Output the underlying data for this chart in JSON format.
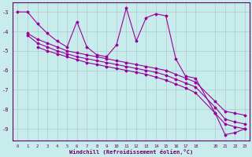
{
  "xlabel": "Windchill (Refroidissement éolien,°C)",
  "bg_color": "#c8ecec",
  "line_color": "#990099",
  "grid_color": "#aacccc",
  "axis_color": "#660066",
  "xlim": [
    -0.5,
    23.5
  ],
  "ylim": [
    -9.6,
    -2.5
  ],
  "yticks": [
    -3,
    -4,
    -5,
    -6,
    -7,
    -8,
    -9
  ],
  "xticks": [
    0,
    1,
    2,
    3,
    4,
    5,
    6,
    7,
    8,
    9,
    10,
    11,
    12,
    13,
    14,
    15,
    16,
    17,
    18,
    20,
    21,
    22,
    23
  ],
  "series1_x": [
    0,
    1,
    2,
    3,
    4,
    5,
    6,
    7,
    8,
    9,
    10,
    11,
    12,
    13,
    14,
    15,
    16,
    17,
    18,
    20,
    21,
    22,
    23
  ],
  "series1_y": [
    -3.0,
    -3.0,
    -3.6,
    -4.1,
    -4.5,
    -4.8,
    -3.5,
    -4.8,
    -5.2,
    -5.3,
    -4.7,
    -2.8,
    -4.5,
    -3.3,
    -3.1,
    -3.2,
    -5.4,
    -6.3,
    -6.4,
    -8.2,
    -9.3,
    -9.2,
    -9.0
  ],
  "series2_x": [
    1,
    2,
    3,
    4,
    5,
    6,
    7,
    8,
    9,
    10,
    11,
    12,
    13,
    14,
    15,
    16,
    17,
    18,
    20,
    21,
    22,
    23
  ],
  "series2_y": [
    -4.1,
    -4.4,
    -4.6,
    -4.8,
    -5.0,
    -5.1,
    -5.2,
    -5.3,
    -5.4,
    -5.5,
    -5.6,
    -5.7,
    -5.8,
    -5.9,
    -6.0,
    -6.2,
    -6.4,
    -6.6,
    -7.6,
    -8.1,
    -8.2,
    -8.3
  ],
  "series3_x": [
    1,
    2,
    3,
    4,
    5,
    6,
    7,
    8,
    9,
    10,
    11,
    12,
    13,
    14,
    15,
    16,
    17,
    18,
    20,
    21,
    22,
    23
  ],
  "series3_y": [
    -4.2,
    -4.6,
    -4.8,
    -5.0,
    -5.15,
    -5.3,
    -5.4,
    -5.5,
    -5.6,
    -5.7,
    -5.8,
    -5.9,
    -6.0,
    -6.1,
    -6.25,
    -6.45,
    -6.65,
    -6.85,
    -7.9,
    -8.5,
    -8.65,
    -8.75
  ],
  "series4_x": [
    2,
    3,
    4,
    5,
    6,
    7,
    8,
    9,
    10,
    11,
    12,
    13,
    14,
    15,
    16,
    17,
    18,
    20,
    21,
    22,
    23
  ],
  "series4_y": [
    -4.8,
    -5.0,
    -5.15,
    -5.3,
    -5.45,
    -5.6,
    -5.7,
    -5.8,
    -5.9,
    -6.0,
    -6.1,
    -6.2,
    -6.35,
    -6.5,
    -6.7,
    -6.9,
    -7.15,
    -8.2,
    -8.75,
    -8.9,
    -9.0
  ]
}
